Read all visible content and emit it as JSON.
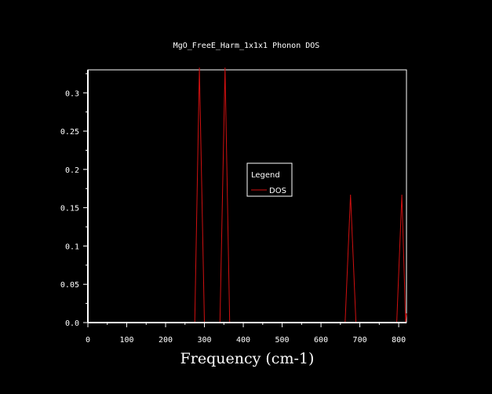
{
  "chart_data": {
    "type": "line",
    "title": "MgO_FreeE_Harm_1x1x1 Phonon DOS",
    "xlabel": "Frequency (cm-1)",
    "ylabel": "",
    "xlim": [
      0,
      820
    ],
    "ylim": [
      0,
      0.33
    ],
    "x_ticks": [
      "0",
      "100",
      "200",
      "300",
      "400",
      "500",
      "600",
      "700",
      "800"
    ],
    "y_ticks": [
      "0.0",
      "0.05",
      "0.1",
      "0.15",
      "0.2",
      "0.25",
      "0.3"
    ],
    "grid": false,
    "legend": {
      "title": "Legend",
      "placement": "center"
    },
    "series": [
      {
        "name": "DOS",
        "color": "#d01010",
        "x": [
          0,
          275,
          287,
          300,
          340,
          353,
          365,
          662,
          676,
          690,
          795,
          808,
          818,
          820
        ],
        "y": [
          0,
          0,
          0.333,
          0,
          0,
          0.333,
          0,
          0,
          0.167,
          0,
          0,
          0.167,
          0,
          0.012
        ]
      }
    ]
  }
}
